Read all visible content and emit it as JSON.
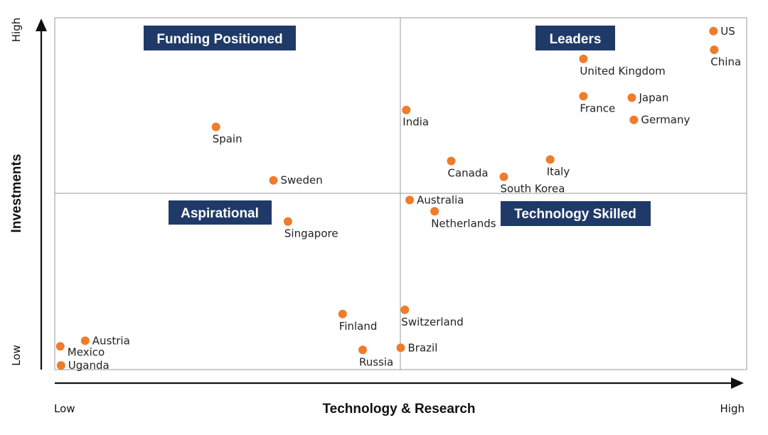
{
  "chart_data": {
    "type": "scatter",
    "title": "",
    "xlabel": "Technology & Research",
    "ylabel": "Investments",
    "xlim": [
      0,
      100
    ],
    "ylim": [
      0,
      100
    ],
    "x_tick_labels": {
      "low": "Low",
      "high": "High"
    },
    "y_tick_labels": {
      "low": "Low",
      "high": "High"
    },
    "quadrant_split": {
      "x": 50,
      "y": 50
    },
    "point_color": "#f07b2a",
    "quadrant_label_color": "#1f3a68",
    "quadrants": [
      {
        "label": "Funding Positioned",
        "position": "top-left"
      },
      {
        "label": "Leaders",
        "position": "top-right"
      },
      {
        "label": "Aspirational",
        "position": "bottom-left"
      },
      {
        "label": "Technology Skilled",
        "position": "bottom-right"
      }
    ],
    "points": [
      {
        "label": "US",
        "x": 95.2,
        "y": 96.2,
        "label_pos": "right"
      },
      {
        "label": "China",
        "x": 95.3,
        "y": 90.9,
        "label_pos": "below"
      },
      {
        "label": "United Kingdom",
        "x": 76.4,
        "y": 88.3,
        "label_pos": "below"
      },
      {
        "label": "Japan",
        "x": 83.4,
        "y": 77.3,
        "label_pos": "right"
      },
      {
        "label": "France",
        "x": 76.4,
        "y": 77.7,
        "label_pos": "below"
      },
      {
        "label": "Germany",
        "x": 83.7,
        "y": 71.0,
        "label_pos": "right"
      },
      {
        "label": "India",
        "x": 50.8,
        "y": 73.8,
        "label_pos": "below"
      },
      {
        "label": "Spain",
        "x": 23.3,
        "y": 69.0,
        "label_pos": "below"
      },
      {
        "label": "Canada",
        "x": 57.3,
        "y": 59.3,
        "label_pos": "below"
      },
      {
        "label": "Italy",
        "x": 71.6,
        "y": 59.7,
        "label_pos": "below"
      },
      {
        "label": "South Korea",
        "x": 64.9,
        "y": 54.8,
        "label_pos": "below"
      },
      {
        "label": "Sweden",
        "x": 31.6,
        "y": 53.8,
        "label_pos": "right"
      },
      {
        "label": "Australia",
        "x": 51.3,
        "y": 48.2,
        "label_pos": "right"
      },
      {
        "label": "Netherlands",
        "x": 54.9,
        "y": 45.0,
        "label_pos": "below"
      },
      {
        "label": "Singapore",
        "x": 33.7,
        "y": 42.1,
        "label_pos": "below"
      },
      {
        "label": "Switzerland",
        "x": 50.6,
        "y": 17.0,
        "label_pos": "below"
      },
      {
        "label": "Finland",
        "x": 41.6,
        "y": 15.8,
        "label_pos": "below"
      },
      {
        "label": "Brazil",
        "x": 50.0,
        "y": 6.2,
        "label_pos": "right"
      },
      {
        "label": "Russia",
        "x": 44.5,
        "y": 5.6,
        "label_pos": "below"
      },
      {
        "label": "Austria",
        "x": 4.4,
        "y": 8.2,
        "label_pos": "right"
      },
      {
        "label": "Mexico",
        "x": 0.8,
        "y": 6.6,
        "label_pos": "below-right"
      },
      {
        "label": "Uganda",
        "x": 0.9,
        "y": 1.2,
        "label_pos": "right"
      }
    ]
  }
}
